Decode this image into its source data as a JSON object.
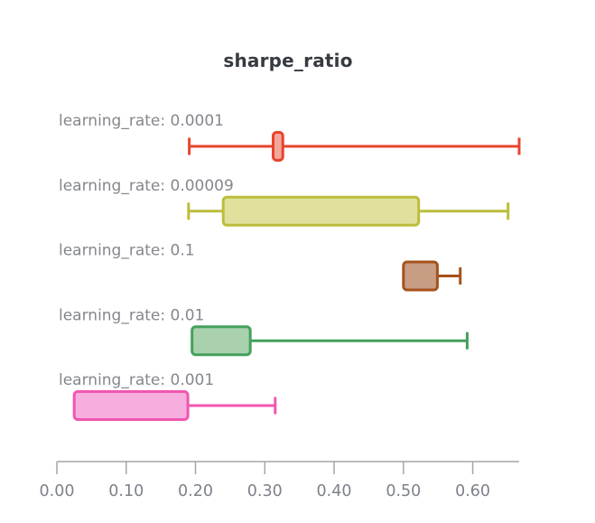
{
  "chart_data": {
    "type": "box",
    "orientation": "horizontal",
    "title": "sharpe_ratio",
    "xlabel": "",
    "ylabel": "",
    "xlim": [
      0,
      0.667
    ],
    "grid": false,
    "legend": false,
    "x_ticks": [
      {
        "value": 0.0,
        "label": "0.00"
      },
      {
        "value": 0.1,
        "label": "0.10"
      },
      {
        "value": 0.2,
        "label": "0.20"
      },
      {
        "value": 0.3,
        "label": "0.30"
      },
      {
        "value": 0.4,
        "label": "0.40"
      },
      {
        "value": 0.5,
        "label": "0.50"
      },
      {
        "value": 0.6,
        "label": "0.60"
      }
    ],
    "series": [
      {
        "label": "learning_rate: 0.0001",
        "min": 0.191,
        "q1": 0.312,
        "q3": 0.326,
        "max": 0.667,
        "stroke": "#e8442e",
        "fill": "#f3a79a"
      },
      {
        "label": "learning_rate: 0.00009",
        "min": 0.19,
        "q1": 0.24,
        "q3": 0.522,
        "max": 0.651,
        "stroke": "#bcbd3c",
        "fill": "#e0e19c"
      },
      {
        "label": "learning_rate: 0.1",
        "min": 0.5,
        "q1": 0.5,
        "q3": 0.549,
        "max": 0.582,
        "stroke": "#a5521b",
        "fill": "#c99c84"
      },
      {
        "label": "learning_rate: 0.01",
        "min": 0.195,
        "q1": 0.195,
        "q3": 0.279,
        "max": 0.592,
        "stroke": "#44a05c",
        "fill": "#aad1ad"
      },
      {
        "label": "learning_rate: 0.001",
        "min": 0.025,
        "q1": 0.025,
        "q3": 0.189,
        "max": 0.315,
        "stroke": "#f156b0",
        "fill": "#f7aede"
      }
    ],
    "colors": {
      "title": "#363b41",
      "axis_line": "#a6a6a6",
      "tick_label": "#7d818a",
      "series_label": "#84878d",
      "background": "#ffffff"
    }
  }
}
